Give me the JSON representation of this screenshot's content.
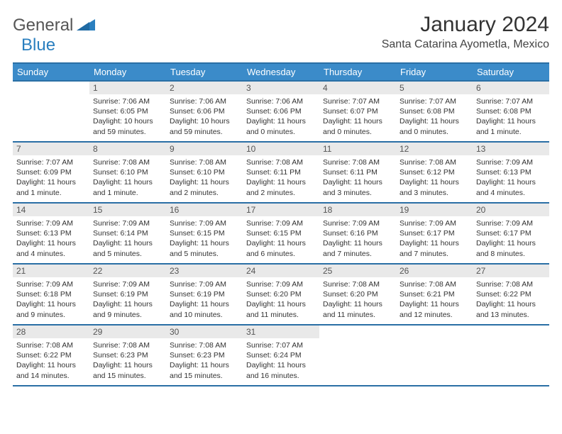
{
  "brand": {
    "text_general": "General",
    "text_blue": "Blue",
    "accent": "#2a7fbf"
  },
  "title": "January 2024",
  "location": "Santa Catarina Ayometla, Mexico",
  "colors": {
    "header_bg": "#3b8bc9",
    "header_text": "#ffffff",
    "rule": "#2a6fa5",
    "daynum_bg": "#e9e9e9",
    "body_text": "#333333"
  },
  "weekdays": [
    "Sunday",
    "Monday",
    "Tuesday",
    "Wednesday",
    "Thursday",
    "Friday",
    "Saturday"
  ],
  "rows": [
    [
      {
        "n": "",
        "lines": [
          "",
          "",
          "",
          ""
        ]
      },
      {
        "n": "1",
        "lines": [
          "Sunrise: 7:06 AM",
          "Sunset: 6:05 PM",
          "Daylight: 10 hours",
          "and 59 minutes."
        ]
      },
      {
        "n": "2",
        "lines": [
          "Sunrise: 7:06 AM",
          "Sunset: 6:06 PM",
          "Daylight: 10 hours",
          "and 59 minutes."
        ]
      },
      {
        "n": "3",
        "lines": [
          "Sunrise: 7:06 AM",
          "Sunset: 6:06 PM",
          "Daylight: 11 hours",
          "and 0 minutes."
        ]
      },
      {
        "n": "4",
        "lines": [
          "Sunrise: 7:07 AM",
          "Sunset: 6:07 PM",
          "Daylight: 11 hours",
          "and 0 minutes."
        ]
      },
      {
        "n": "5",
        "lines": [
          "Sunrise: 7:07 AM",
          "Sunset: 6:08 PM",
          "Daylight: 11 hours",
          "and 0 minutes."
        ]
      },
      {
        "n": "6",
        "lines": [
          "Sunrise: 7:07 AM",
          "Sunset: 6:08 PM",
          "Daylight: 11 hours",
          "and 1 minute."
        ]
      }
    ],
    [
      {
        "n": "7",
        "lines": [
          "Sunrise: 7:07 AM",
          "Sunset: 6:09 PM",
          "Daylight: 11 hours",
          "and 1 minute."
        ]
      },
      {
        "n": "8",
        "lines": [
          "Sunrise: 7:08 AM",
          "Sunset: 6:10 PM",
          "Daylight: 11 hours",
          "and 1 minute."
        ]
      },
      {
        "n": "9",
        "lines": [
          "Sunrise: 7:08 AM",
          "Sunset: 6:10 PM",
          "Daylight: 11 hours",
          "and 2 minutes."
        ]
      },
      {
        "n": "10",
        "lines": [
          "Sunrise: 7:08 AM",
          "Sunset: 6:11 PM",
          "Daylight: 11 hours",
          "and 2 minutes."
        ]
      },
      {
        "n": "11",
        "lines": [
          "Sunrise: 7:08 AM",
          "Sunset: 6:11 PM",
          "Daylight: 11 hours",
          "and 3 minutes."
        ]
      },
      {
        "n": "12",
        "lines": [
          "Sunrise: 7:08 AM",
          "Sunset: 6:12 PM",
          "Daylight: 11 hours",
          "and 3 minutes."
        ]
      },
      {
        "n": "13",
        "lines": [
          "Sunrise: 7:09 AM",
          "Sunset: 6:13 PM",
          "Daylight: 11 hours",
          "and 4 minutes."
        ]
      }
    ],
    [
      {
        "n": "14",
        "lines": [
          "Sunrise: 7:09 AM",
          "Sunset: 6:13 PM",
          "Daylight: 11 hours",
          "and 4 minutes."
        ]
      },
      {
        "n": "15",
        "lines": [
          "Sunrise: 7:09 AM",
          "Sunset: 6:14 PM",
          "Daylight: 11 hours",
          "and 5 minutes."
        ]
      },
      {
        "n": "16",
        "lines": [
          "Sunrise: 7:09 AM",
          "Sunset: 6:15 PM",
          "Daylight: 11 hours",
          "and 5 minutes."
        ]
      },
      {
        "n": "17",
        "lines": [
          "Sunrise: 7:09 AM",
          "Sunset: 6:15 PM",
          "Daylight: 11 hours",
          "and 6 minutes."
        ]
      },
      {
        "n": "18",
        "lines": [
          "Sunrise: 7:09 AM",
          "Sunset: 6:16 PM",
          "Daylight: 11 hours",
          "and 7 minutes."
        ]
      },
      {
        "n": "19",
        "lines": [
          "Sunrise: 7:09 AM",
          "Sunset: 6:17 PM",
          "Daylight: 11 hours",
          "and 7 minutes."
        ]
      },
      {
        "n": "20",
        "lines": [
          "Sunrise: 7:09 AM",
          "Sunset: 6:17 PM",
          "Daylight: 11 hours",
          "and 8 minutes."
        ]
      }
    ],
    [
      {
        "n": "21",
        "lines": [
          "Sunrise: 7:09 AM",
          "Sunset: 6:18 PM",
          "Daylight: 11 hours",
          "and 9 minutes."
        ]
      },
      {
        "n": "22",
        "lines": [
          "Sunrise: 7:09 AM",
          "Sunset: 6:19 PM",
          "Daylight: 11 hours",
          "and 9 minutes."
        ]
      },
      {
        "n": "23",
        "lines": [
          "Sunrise: 7:09 AM",
          "Sunset: 6:19 PM",
          "Daylight: 11 hours",
          "and 10 minutes."
        ]
      },
      {
        "n": "24",
        "lines": [
          "Sunrise: 7:09 AM",
          "Sunset: 6:20 PM",
          "Daylight: 11 hours",
          "and 11 minutes."
        ]
      },
      {
        "n": "25",
        "lines": [
          "Sunrise: 7:08 AM",
          "Sunset: 6:20 PM",
          "Daylight: 11 hours",
          "and 11 minutes."
        ]
      },
      {
        "n": "26",
        "lines": [
          "Sunrise: 7:08 AM",
          "Sunset: 6:21 PM",
          "Daylight: 11 hours",
          "and 12 minutes."
        ]
      },
      {
        "n": "27",
        "lines": [
          "Sunrise: 7:08 AM",
          "Sunset: 6:22 PM",
          "Daylight: 11 hours",
          "and 13 minutes."
        ]
      }
    ],
    [
      {
        "n": "28",
        "lines": [
          "Sunrise: 7:08 AM",
          "Sunset: 6:22 PM",
          "Daylight: 11 hours",
          "and 14 minutes."
        ]
      },
      {
        "n": "29",
        "lines": [
          "Sunrise: 7:08 AM",
          "Sunset: 6:23 PM",
          "Daylight: 11 hours",
          "and 15 minutes."
        ]
      },
      {
        "n": "30",
        "lines": [
          "Sunrise: 7:08 AM",
          "Sunset: 6:23 PM",
          "Daylight: 11 hours",
          "and 15 minutes."
        ]
      },
      {
        "n": "31",
        "lines": [
          "Sunrise: 7:07 AM",
          "Sunset: 6:24 PM",
          "Daylight: 11 hours",
          "and 16 minutes."
        ]
      },
      {
        "n": "",
        "lines": [
          "",
          "",
          "",
          ""
        ]
      },
      {
        "n": "",
        "lines": [
          "",
          "",
          "",
          ""
        ]
      },
      {
        "n": "",
        "lines": [
          "",
          "",
          "",
          ""
        ]
      }
    ]
  ]
}
